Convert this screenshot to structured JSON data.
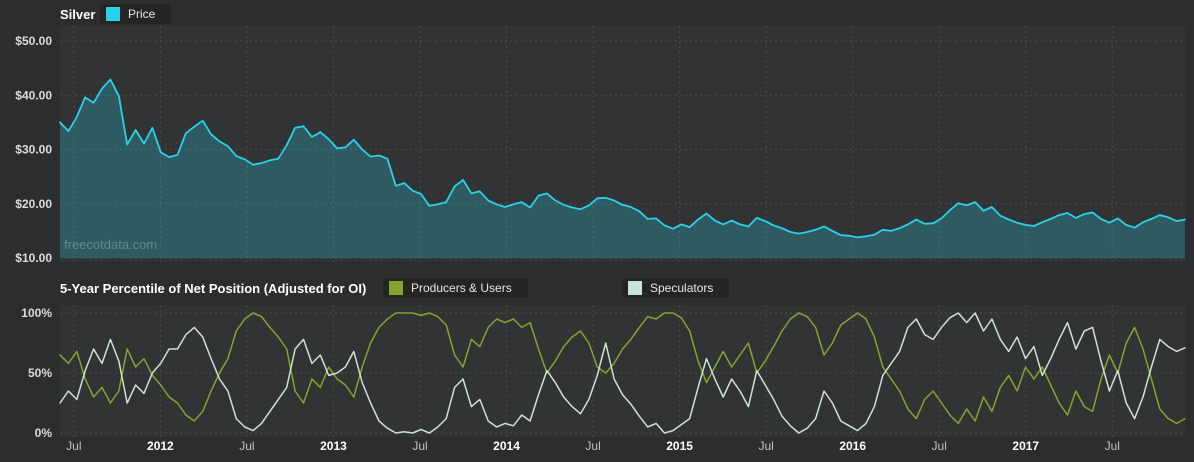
{
  "page": {
    "watermark": "freecotdata.com"
  },
  "chart_data": [
    {
      "type": "area",
      "title": "Silver",
      "x_range": [
        2011.42,
        2017.92
      ],
      "ylim": [
        10,
        50
      ],
      "yticks": [
        10,
        20,
        30,
        40,
        50
      ],
      "ytick_labels": [
        "$10.00",
        "$20.00",
        "$30.00",
        "$40.00",
        "$50.00"
      ],
      "xticks": [
        2011.5,
        2012,
        2012.5,
        2013,
        2013.5,
        2014,
        2014.5,
        2015,
        2015.5,
        2016,
        2016.5,
        2017,
        2017.5
      ],
      "xtick_labels": [
        "Jul",
        "2012",
        "Jul",
        "2013",
        "Jul",
        "2014",
        "Jul",
        "2015",
        "Jul",
        "2016",
        "Jul",
        "2017",
        "Jul"
      ],
      "grid": true,
      "grid_color": "#4a4c4d",
      "plot_bg": "#313334",
      "legend_position": "top",
      "series": [
        {
          "name": "Price",
          "color": "#29d2e8",
          "fill": "rgba(41,200,222,0.27)",
          "width": 1.8,
          "values": [
            35.0,
            33.4,
            36.0,
            39.6,
            38.6,
            41.2,
            42.9,
            39.9,
            30.9,
            33.6,
            31.1,
            34.0,
            29.5,
            28.6,
            29.0,
            33.0,
            34.2,
            35.3,
            32.8,
            31.5,
            30.6,
            28.8,
            28.2,
            27.2,
            27.5,
            28.0,
            28.3,
            30.8,
            34.0,
            34.3,
            32.3,
            33.2,
            31.9,
            30.2,
            30.4,
            31.8,
            30.0,
            28.7,
            28.9,
            28.3,
            23.3,
            23.8,
            22.4,
            21.8,
            19.6,
            19.9,
            20.3,
            23.2,
            24.4,
            21.9,
            22.3,
            20.6,
            19.9,
            19.4,
            19.9,
            20.3,
            19.3,
            21.5,
            21.9,
            20.6,
            19.8,
            19.3,
            19.0,
            19.7,
            21.0,
            21.1,
            20.6,
            19.8,
            19.4,
            18.6,
            17.2,
            17.3,
            16.0,
            15.4,
            16.2,
            15.7,
            17.1,
            18.2,
            16.9,
            16.2,
            16.9,
            16.2,
            15.8,
            17.4,
            16.8,
            16.0,
            15.5,
            14.8,
            14.5,
            14.8,
            15.2,
            15.8,
            15.0,
            14.2,
            14.1,
            13.8,
            14.0,
            14.3,
            15.2,
            15.0,
            15.5,
            16.2,
            17.1,
            16.3,
            16.4,
            17.3,
            18.8,
            20.1,
            19.7,
            20.3,
            18.7,
            19.4,
            17.8,
            17.1,
            16.5,
            16.1,
            15.9,
            16.6,
            17.2,
            17.9,
            18.3,
            17.4,
            18.1,
            18.4,
            17.2,
            16.5,
            17.3,
            16.1,
            15.6,
            16.6,
            17.2,
            17.9,
            17.5,
            16.8,
            17.1
          ]
        }
      ]
    },
    {
      "type": "line",
      "title": "5-Year Percentile of Net Position (Adjusted for OI)",
      "x_range": [
        2011.42,
        2017.92
      ],
      "ylim": [
        0,
        100
      ],
      "yticks": [
        0,
        50,
        100
      ],
      "ytick_labels": [
        "0%",
        "50%",
        "100%"
      ],
      "xticks": [
        2011.5,
        2012,
        2012.5,
        2013,
        2013.5,
        2014,
        2014.5,
        2015,
        2015.5,
        2016,
        2016.5,
        2017,
        2017.5
      ],
      "xtick_labels": [
        "Jul",
        "2012",
        "Jul",
        "2013",
        "Jul",
        "2014",
        "Jul",
        "2015",
        "Jul",
        "2016",
        "Jul",
        "2017",
        "Jul"
      ],
      "grid": true,
      "grid_color": "#4a4c4d",
      "plot_bg": "#313334",
      "legend_position": "top",
      "series": [
        {
          "name": "Producers & Users",
          "color": "#84a52f",
          "width": 1.5,
          "values": [
            65,
            58,
            68,
            45,
            30,
            38,
            25,
            35,
            70,
            55,
            62,
            48,
            40,
            30,
            25,
            15,
            10,
            18,
            35,
            50,
            62,
            85,
            95,
            100,
            97,
            88,
            80,
            70,
            35,
            25,
            45,
            38,
            55,
            45,
            40,
            30,
            55,
            75,
            88,
            95,
            100,
            100,
            100,
            98,
            100,
            97,
            90,
            65,
            55,
            78,
            72,
            88,
            95,
            92,
            95,
            88,
            92,
            70,
            50,
            60,
            72,
            80,
            85,
            75,
            55,
            50,
            58,
            70,
            78,
            88,
            97,
            95,
            100,
            100,
            96,
            85,
            60,
            42,
            55,
            68,
            55,
            65,
            75,
            50,
            60,
            72,
            85,
            95,
            100,
            97,
            88,
            65,
            75,
            90,
            95,
            100,
            95,
            80,
            55,
            45,
            35,
            20,
            12,
            28,
            35,
            25,
            15,
            8,
            20,
            10,
            30,
            18,
            38,
            48,
            35,
            55,
            45,
            55,
            40,
            25,
            15,
            35,
            22,
            18,
            45,
            65,
            50,
            75,
            88,
            70,
            45,
            20,
            12,
            8,
            12
          ]
        },
        {
          "name": "Speculators",
          "color": "#cbe4d3",
          "width": 1.5,
          "values": [
            25,
            35,
            28,
            52,
            70,
            58,
            78,
            60,
            25,
            40,
            33,
            50,
            58,
            70,
            70,
            82,
            88,
            80,
            62,
            45,
            35,
            12,
            5,
            2,
            8,
            18,
            28,
            38,
            70,
            78,
            58,
            65,
            48,
            50,
            55,
            68,
            42,
            25,
            10,
            4,
            0,
            1,
            0,
            3,
            0,
            5,
            12,
            38,
            45,
            22,
            28,
            10,
            5,
            8,
            6,
            15,
            10,
            32,
            52,
            42,
            30,
            22,
            16,
            28,
            48,
            75,
            45,
            32,
            24,
            14,
            5,
            8,
            0,
            2,
            7,
            12,
            38,
            62,
            45,
            30,
            45,
            35,
            22,
            52,
            40,
            28,
            14,
            6,
            0,
            4,
            12,
            35,
            25,
            10,
            6,
            2,
            8,
            22,
            48,
            58,
            68,
            88,
            95,
            82,
            78,
            88,
            96,
            100,
            92,
            100,
            85,
            95,
            78,
            68,
            80,
            62,
            72,
            48,
            62,
            78,
            92,
            70,
            85,
            88,
            60,
            35,
            52,
            25,
            12,
            30,
            55,
            78,
            72,
            68,
            71
          ]
        }
      ]
    }
  ]
}
